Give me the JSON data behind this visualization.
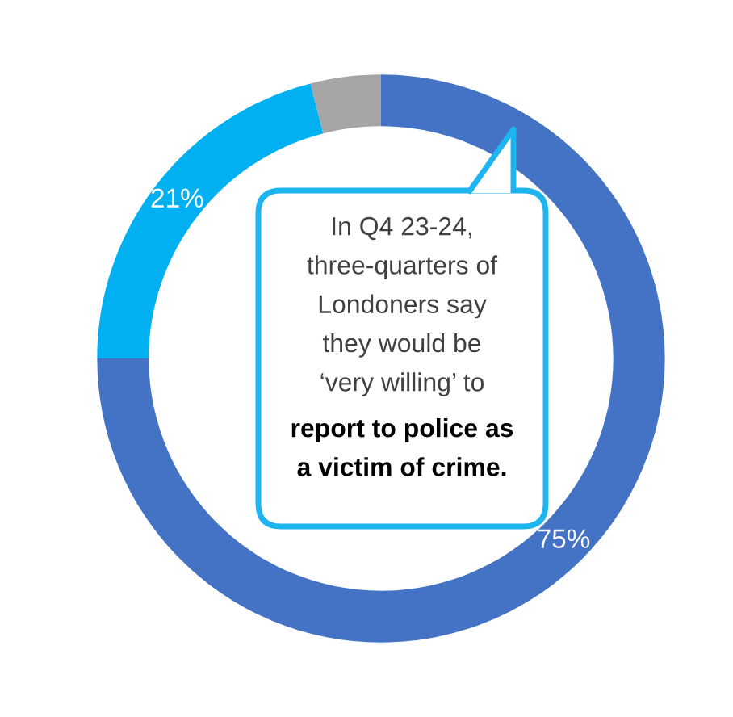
{
  "chart_data": {
    "type": "donut",
    "categories": [
      null,
      null,
      null
    ],
    "values": [
      75,
      21,
      4
    ],
    "colors": [
      "#4472c4",
      "#00b0f0",
      "#a5a5a5"
    ],
    "value_labels": [
      "75%",
      "21%",
      null
    ],
    "annotations": [
      "In Q4 23-24,\nthree-quarters of\nLondoners say\nthey would be\n‘very willing’ to",
      "report to police as\na victim of crime."
    ],
    "legend": false
  }
}
